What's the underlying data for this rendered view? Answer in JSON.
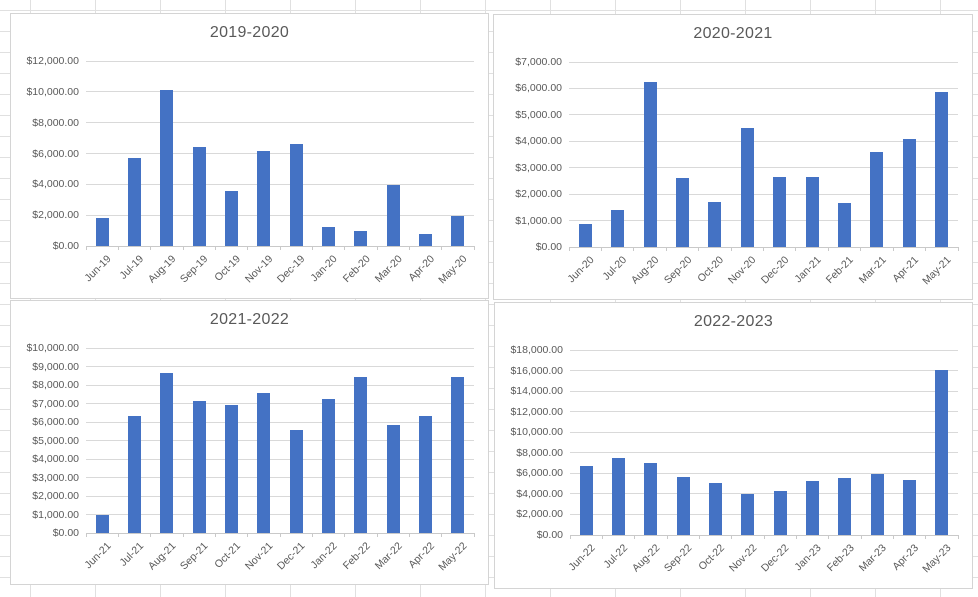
{
  "colors": {
    "bar": "#4472C4",
    "text": "#595959",
    "gridline": "#D9D9D9",
    "axis_line": "#C9C9C9",
    "panel_border": "#D4D4D4",
    "sheet_gridline": "#E0E0E0",
    "background": "#FFFFFF"
  },
  "chart_data": [
    {
      "type": "bar",
      "title": "2019-2020",
      "categories": [
        "Jun-19",
        "Jul-19",
        "Aug-19",
        "Sep-19",
        "Oct-19",
        "Nov-19",
        "Dec-19",
        "Jan-20",
        "Feb-20",
        "Mar-20",
        "Apr-20",
        "May-20"
      ],
      "values": [
        1800,
        5700,
        10100,
        6400,
        3600,
        6150,
        6600,
        1250,
        1000,
        3950,
        800,
        1950
      ],
      "series_color": "#4472C4",
      "xlabel": "",
      "ylabel": "",
      "ylim": [
        0,
        12000
      ],
      "y_step": 2000,
      "y_tick_labels": [
        "$12,000.00",
        "$10,000.00",
        "$8,000.00",
        "$6,000.00",
        "$4,000.00",
        "$2,000.00",
        "$0.00"
      ],
      "grid": true,
      "legend": false
    },
    {
      "type": "bar",
      "title": "2020-2021",
      "categories": [
        "Jun-20",
        "Jul-20",
        "Aug-20",
        "Sep-20",
        "Oct-20",
        "Nov-20",
        "Dec-20",
        "Jan-21",
        "Feb-21",
        "Mar-21",
        "Apr-21",
        "May-21"
      ],
      "values": [
        875,
        1400,
        6250,
        2600,
        1700,
        4500,
        2650,
        2650,
        1650,
        3600,
        4100,
        5850
      ],
      "series_color": "#4472C4",
      "xlabel": "",
      "ylabel": "",
      "ylim": [
        0,
        7000
      ],
      "y_step": 1000,
      "y_tick_labels": [
        "$7,000.00",
        "$6,000.00",
        "$5,000.00",
        "$4,000.00",
        "$3,000.00",
        "$2,000.00",
        "$1,000.00",
        "$0.00"
      ],
      "grid": true,
      "legend": false
    },
    {
      "type": "bar",
      "title": "2021-2022",
      "categories": [
        "Jun-21",
        "Jul-21",
        "Aug-21",
        "Sep-21",
        "Oct-21",
        "Nov-21",
        "Dec-21",
        "Jan-22",
        "Feb-22",
        "Mar-22",
        "Apr-22",
        "May-22"
      ],
      "values": [
        950,
        6300,
        8650,
        7150,
        6900,
        7550,
        5550,
        7250,
        8450,
        5850,
        6300,
        8450
      ],
      "series_color": "#4472C4",
      "xlabel": "",
      "ylabel": "",
      "ylim": [
        0,
        10000
      ],
      "y_step": 1000,
      "y_tick_labels": [
        "$10,000.00",
        "$9,000.00",
        "$8,000.00",
        "$7,000.00",
        "$6,000.00",
        "$5,000.00",
        "$4,000.00",
        "$3,000.00",
        "$2,000.00",
        "$1,000.00",
        "$0.00"
      ],
      "grid": true,
      "legend": false
    },
    {
      "type": "bar",
      "title": "2022-2023",
      "categories": [
        "Jun-22",
        "Jul-22",
        "Aug-22",
        "Sep-22",
        "Oct-22",
        "Nov-22",
        "Dec-22",
        "Jan-23",
        "Feb-23",
        "Mar-23",
        "Apr-23",
        "May-23"
      ],
      "values": [
        6700,
        7450,
        7050,
        5600,
        5050,
        3950,
        4250,
        5300,
        5500,
        5900,
        5400,
        16100
      ],
      "series_color": "#4472C4",
      "xlabel": "",
      "ylabel": "",
      "ylim": [
        0,
        18000
      ],
      "y_step": 2000,
      "y_tick_labels": [
        "$18,000.00",
        "$16,000.00",
        "$14,000.00",
        "$12,000.00",
        "$10,000.00",
        "$8,000.00",
        "$6,000.00",
        "$4,000.00",
        "$2,000.00",
        "$0.00"
      ],
      "grid": true,
      "legend": false
    }
  ]
}
